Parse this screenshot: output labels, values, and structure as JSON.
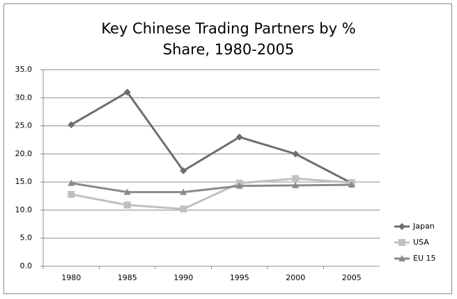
{
  "chart_data": {
    "type": "line",
    "title": "Key Chinese Trading Partners by % Share, 1980-2005",
    "categories": [
      "1980",
      "1985",
      "1990",
      "1995",
      "2000",
      "2005"
    ],
    "series": [
      {
        "name": "Japan",
        "color": "#6e6e6e",
        "marker": "diamond",
        "values": [
          25.2,
          31.0,
          17.0,
          23.0,
          20.0,
          14.8
        ]
      },
      {
        "name": "USA",
        "color": "#c0c0c0",
        "marker": "square",
        "values": [
          12.8,
          10.9,
          10.2,
          14.8,
          15.6,
          14.9
        ]
      },
      {
        "name": "EU 15",
        "color": "#8a8a8a",
        "marker": "triangle",
        "values": [
          14.8,
          13.2,
          13.2,
          14.3,
          14.4,
          14.5
        ]
      }
    ],
    "ylim": [
      0,
      35
    ],
    "yticks": [
      {
        "value": 0,
        "label": "0.0"
      },
      {
        "value": 5,
        "label": "5.0"
      },
      {
        "value": 10,
        "label": "10.0"
      },
      {
        "value": 15,
        "label": "15.0"
      },
      {
        "value": 20,
        "label": "20.0"
      },
      {
        "value": 25,
        "label": "25.0"
      },
      {
        "value": 30,
        "label": "30.0"
      },
      {
        "value": 35,
        "label": "35.0"
      }
    ],
    "grid": true,
    "legend": "right"
  }
}
